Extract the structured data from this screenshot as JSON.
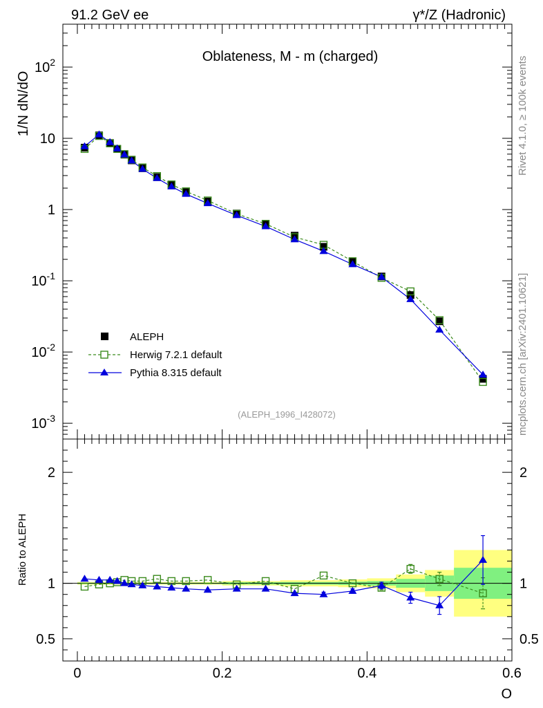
{
  "header": {
    "left": "91.2 GeV ee",
    "right": "γ*/Z (Hadronic)"
  },
  "side_labels": {
    "rivet": "Rivet 4.1.0, ≥ 100k events",
    "mcplots": "mcplots.cern.ch [arXiv:2401.10621]"
  },
  "colors": {
    "data": "#000000",
    "herwig": "#3a8a1c",
    "pythia": "#0000dd",
    "band_yellow": "#ffff80",
    "band_green": "#80f080"
  },
  "chart_data": [
    {
      "type": "line",
      "scale": "log",
      "title": "Oblateness, M - m (charged)",
      "ylabel": "1/N  dN/dO",
      "analysis_label": "(ALEPH_1996_I428072)",
      "xlim": [
        -0.02,
        0.6
      ],
      "ylim": [
        0.0006,
        400
      ],
      "ytick_labels": [
        {
          "value": 0.001,
          "base": "10",
          "exp": "-3"
        },
        {
          "value": 0.01,
          "base": "10",
          "exp": "-2"
        },
        {
          "value": 0.1,
          "base": "10",
          "exp": "-1"
        },
        {
          "value": 1,
          "base": "1",
          "exp": ""
        },
        {
          "value": 10,
          "base": "10",
          "exp": ""
        },
        {
          "value": 100,
          "base": "10",
          "exp": "2"
        }
      ],
      "legend": [
        {
          "key": "data",
          "label": "ALEPH"
        },
        {
          "key": "herwig",
          "label": "Herwig 7.2.1 default"
        },
        {
          "key": "pythia",
          "label": "Pythia 8.315 default"
        }
      ],
      "x": [
        0.01,
        0.03,
        0.045,
        0.055,
        0.065,
        0.075,
        0.09,
        0.11,
        0.13,
        0.15,
        0.18,
        0.22,
        0.26,
        0.3,
        0.34,
        0.38,
        0.42,
        0.46,
        0.5,
        0.56
      ],
      "series": [
        {
          "name": "ALEPH",
          "key": "data",
          "values": [
            7.4,
            11.0,
            8.6,
            7.1,
            5.9,
            4.9,
            3.8,
            2.85,
            2.2,
            1.75,
            1.3,
            0.88,
            0.62,
            0.43,
            0.3,
            0.185,
            0.115,
            0.063,
            0.027,
            0.0042
          ]
        },
        {
          "name": "Herwig 7.2.1 default",
          "key": "herwig",
          "values": [
            7.1,
            10.8,
            8.5,
            7.1,
            6.0,
            5.0,
            3.9,
            2.95,
            2.25,
            1.8,
            1.34,
            0.87,
            0.63,
            0.41,
            0.32,
            0.188,
            0.11,
            0.071,
            0.028,
            0.0038
          ]
        },
        {
          "name": "Pythia 8.315 default",
          "key": "pythia",
          "values": [
            7.7,
            11.3,
            8.8,
            7.2,
            5.9,
            4.85,
            3.7,
            2.75,
            2.1,
            1.65,
            1.22,
            0.83,
            0.58,
            0.38,
            0.26,
            0.17,
            0.113,
            0.055,
            0.0205,
            0.0048
          ]
        }
      ]
    },
    {
      "type": "line",
      "scale": "linear",
      "ylabel": "Ratio to ALEPH",
      "xlabel": "O",
      "xlim": [
        -0.02,
        0.6
      ],
      "ylim": [
        0.3,
        2.3
      ],
      "ytick_labels": [
        "0.5",
        "1",
        "2"
      ],
      "yticks": [
        0.5,
        1,
        2
      ],
      "xtick_labels": [
        "0",
        "0.2",
        "0.4",
        "0.6"
      ],
      "xticks": [
        0,
        0.2,
        0.4,
        0.6
      ],
      "x": [
        0.01,
        0.03,
        0.045,
        0.055,
        0.065,
        0.075,
        0.09,
        0.11,
        0.13,
        0.15,
        0.18,
        0.22,
        0.26,
        0.3,
        0.34,
        0.38,
        0.42,
        0.46,
        0.5,
        0.56
      ],
      "uncertainty_bands": [
        {
          "x0": 0.0,
          "x1": 0.2,
          "stat": 0.006,
          "total": 0.012
        },
        {
          "x0": 0.2,
          "x1": 0.28,
          "stat": 0.01,
          "total": 0.02
        },
        {
          "x0": 0.28,
          "x1": 0.36,
          "stat": 0.012,
          "total": 0.028
        },
        {
          "x0": 0.36,
          "x1": 0.4,
          "stat": 0.015,
          "total": 0.035
        },
        {
          "x0": 0.4,
          "x1": 0.44,
          "stat": 0.02,
          "total": 0.045
        },
        {
          "x0": 0.44,
          "x1": 0.48,
          "stat": 0.04,
          "total": 0.08
        },
        {
          "x0": 0.48,
          "x1": 0.52,
          "stat": 0.07,
          "total": 0.12
        },
        {
          "x0": 0.52,
          "x1": 0.6,
          "stat": 0.14,
          "total": 0.3
        }
      ],
      "series": [
        {
          "name": "Herwig 7.2.1 default",
          "key": "herwig",
          "values": [
            0.97,
            0.99,
            1.0,
            1.01,
            1.03,
            1.02,
            1.02,
            1.04,
            1.02,
            1.02,
            1.03,
            0.99,
            1.02,
            0.95,
            1.07,
            1.0,
            0.96,
            1.13,
            1.04,
            0.91
          ],
          "errors": [
            0.01,
            0.01,
            0.01,
            0.01,
            0.01,
            0.01,
            0.01,
            0.01,
            0.01,
            0.01,
            0.01,
            0.01,
            0.01,
            0.01,
            0.01,
            0.01,
            0.02,
            0.04,
            0.06,
            0.14
          ]
        },
        {
          "name": "Pythia 8.315 default",
          "key": "pythia",
          "values": [
            1.04,
            1.03,
            1.03,
            1.02,
            1.0,
            0.99,
            0.98,
            0.97,
            0.96,
            0.95,
            0.94,
            0.95,
            0.95,
            0.91,
            0.9,
            0.93,
            0.98,
            0.87,
            0.8,
            1.21
          ],
          "errors": [
            0.01,
            0.01,
            0.01,
            0.01,
            0.01,
            0.01,
            0.01,
            0.01,
            0.01,
            0.01,
            0.01,
            0.01,
            0.01,
            0.01,
            0.02,
            0.02,
            0.03,
            0.05,
            0.08,
            0.22
          ]
        }
      ]
    }
  ]
}
